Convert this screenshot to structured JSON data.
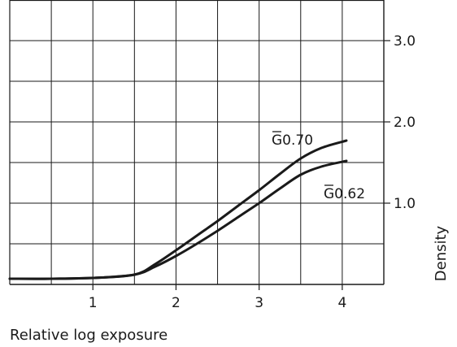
{
  "chart_data": {
    "type": "line",
    "title": "",
    "xlabel": "Relative log exposure",
    "ylabel": "Density",
    "xlim": [
      0,
      4.5
    ],
    "ylim": [
      0,
      3.5
    ],
    "x_ticks": [
      1,
      2,
      3,
      4
    ],
    "x_tick_labels": [
      "1",
      "2",
      "3",
      "4"
    ],
    "y_ticks": [
      1.0,
      2.0,
      3.0
    ],
    "y_tick_labels": [
      "1.0",
      "2.0",
      "3.0"
    ],
    "grid": true,
    "y_axis_side": "right",
    "series": [
      {
        "name": "G0.70",
        "x": [
          0,
          0.5,
          1.0,
          1.5,
          1.75,
          2.0,
          2.25,
          2.5,
          2.75,
          3.0,
          3.25,
          3.5,
          3.75,
          4.05
        ],
        "values": [
          0.07,
          0.07,
          0.08,
          0.12,
          0.25,
          0.42,
          0.6,
          0.78,
          0.97,
          1.16,
          1.36,
          1.55,
          1.68,
          1.77
        ]
      },
      {
        "name": "G0.62",
        "x": [
          0,
          0.5,
          1.0,
          1.5,
          1.75,
          2.0,
          2.25,
          2.5,
          2.75,
          3.0,
          3.25,
          3.5,
          3.75,
          4.05
        ],
        "values": [
          0.07,
          0.07,
          0.08,
          0.12,
          0.22,
          0.35,
          0.5,
          0.66,
          0.83,
          1.0,
          1.18,
          1.35,
          1.45,
          1.52
        ]
      }
    ]
  },
  "colors": {
    "line": "#1a1a1a",
    "grid": "#1a1a1a",
    "background": "#ffffff"
  }
}
